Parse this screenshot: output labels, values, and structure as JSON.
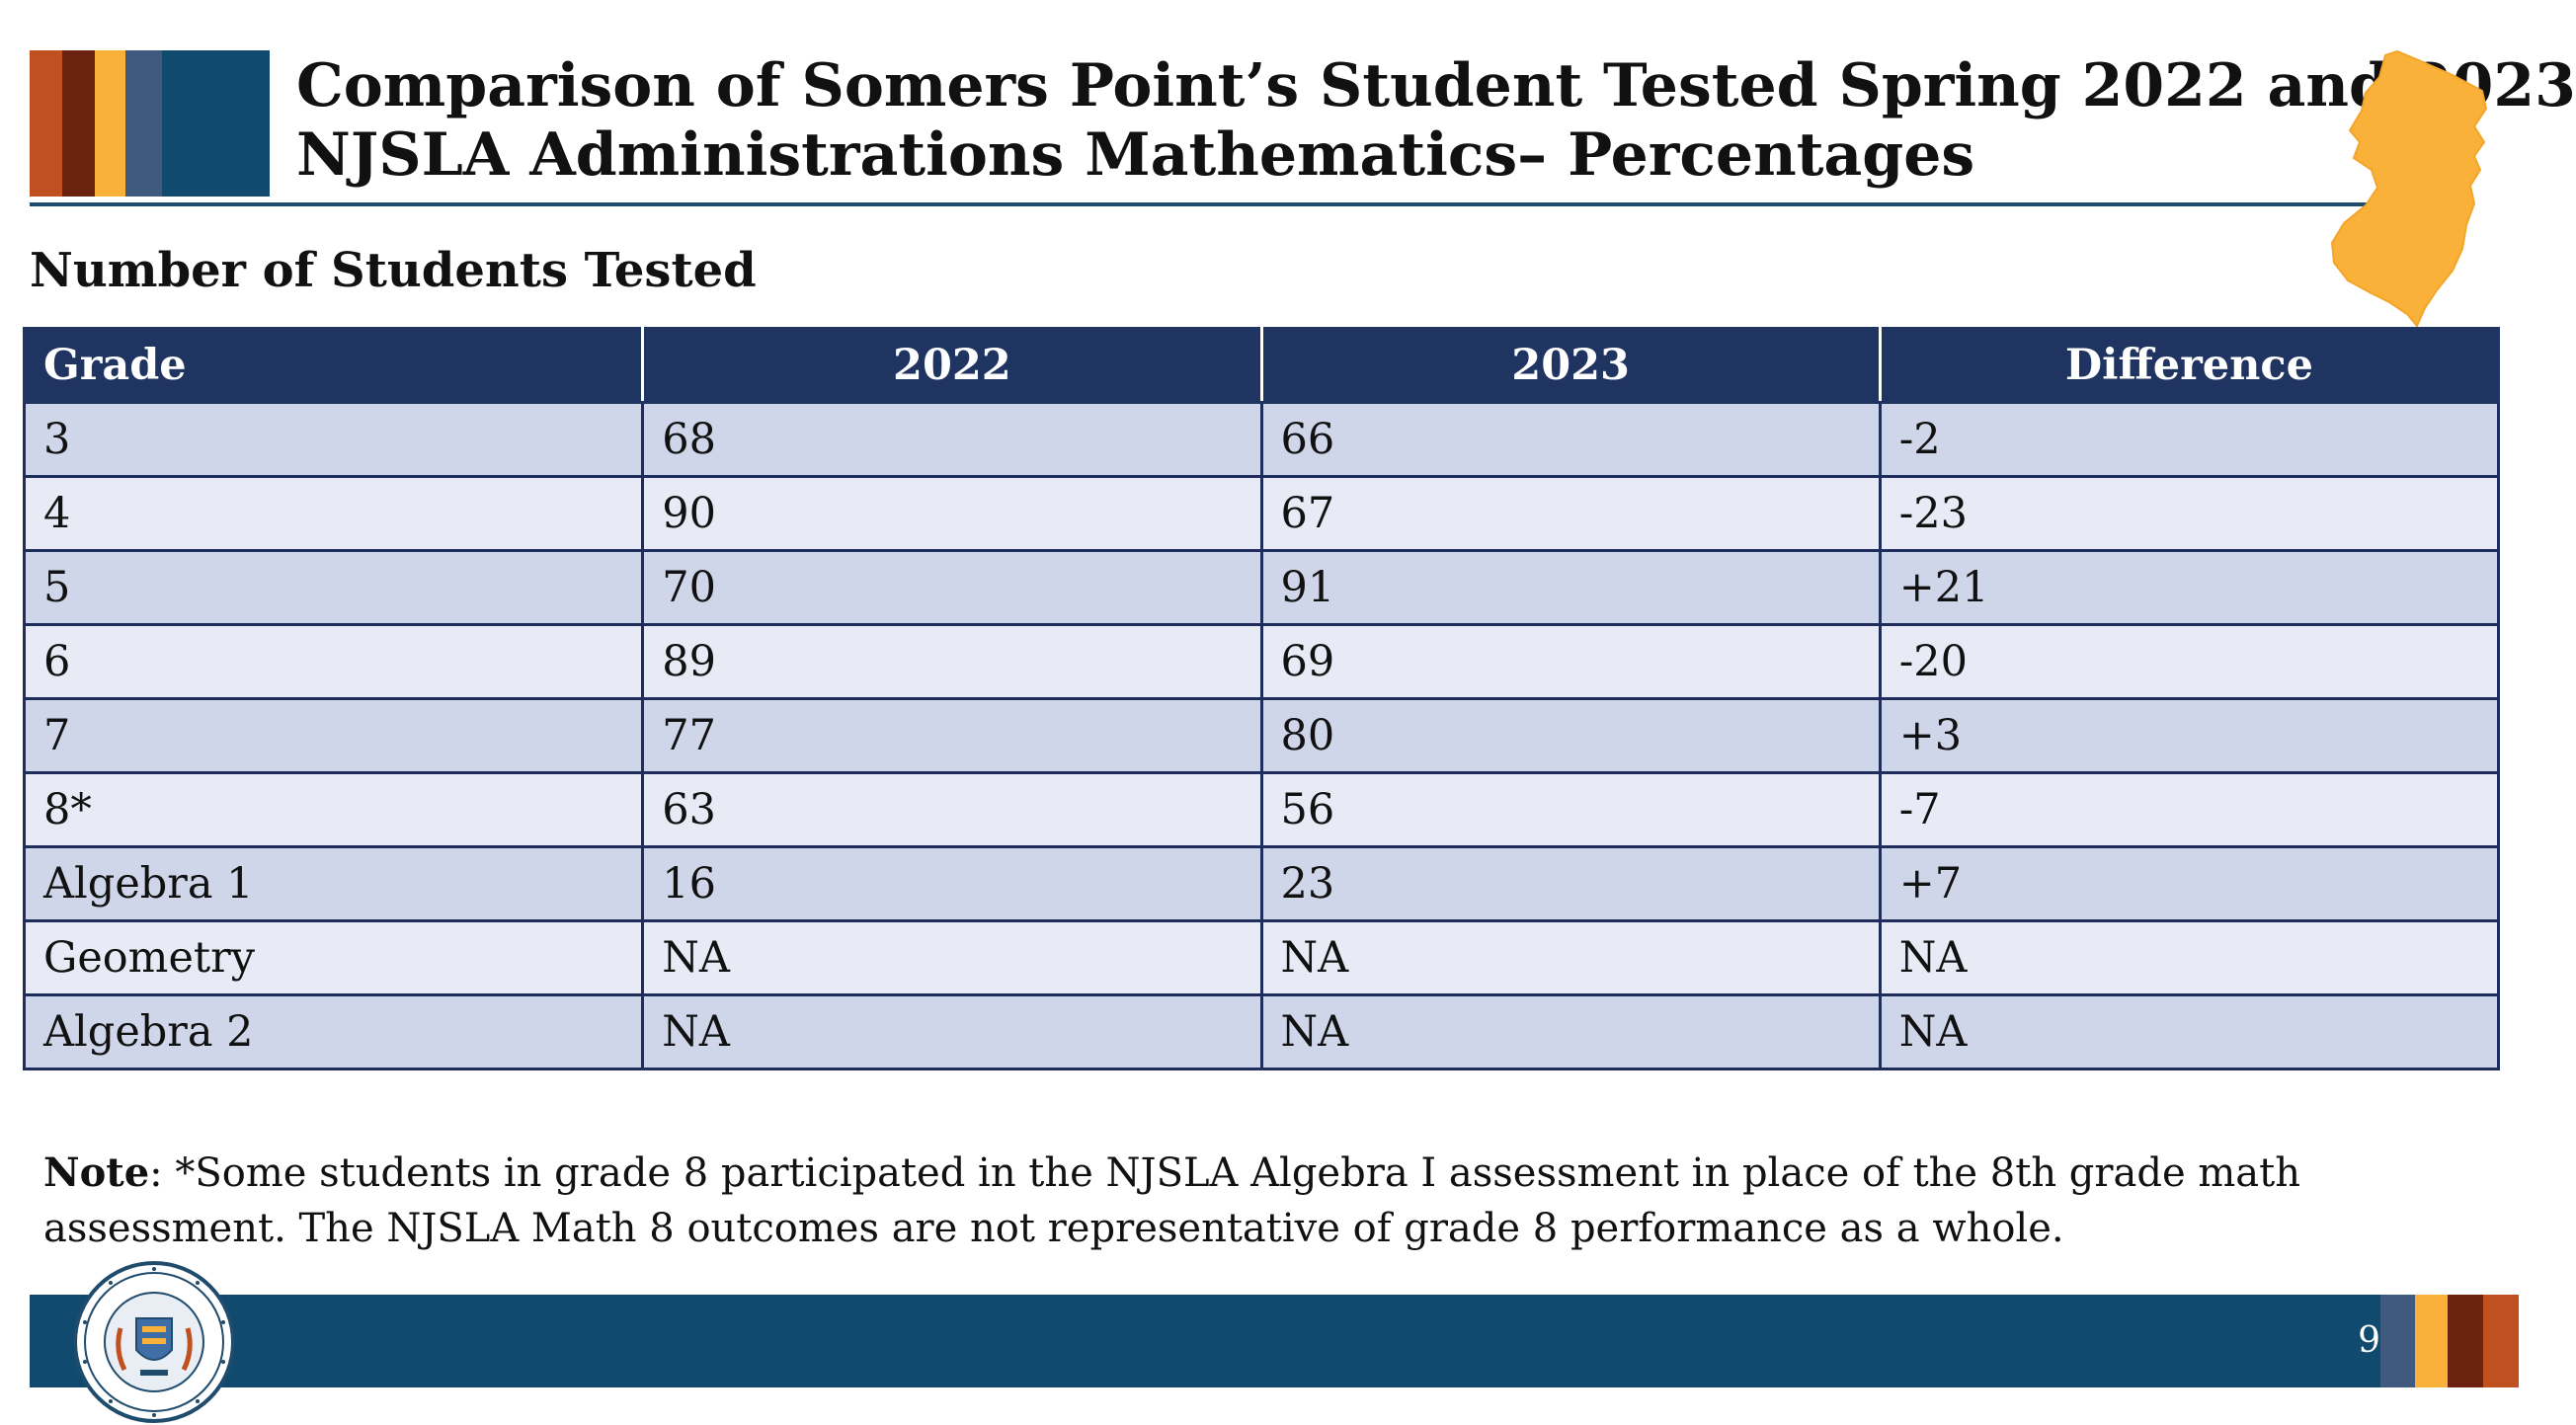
{
  "title": {
    "line1": "Comparison of Somers Point’s Student Tested Spring 2022 and 2023",
    "line2": "NJSLA Administrations Mathematics– Percentages"
  },
  "subtitle": "Number of Students Tested",
  "table": {
    "headers": [
      "Grade",
      "2022",
      "2023",
      "Difference"
    ],
    "rows": [
      [
        "3",
        "68",
        "66",
        "-2"
      ],
      [
        "4",
        "90",
        "67",
        "-23"
      ],
      [
        "5",
        "70",
        "91",
        "+21"
      ],
      [
        "6",
        "89",
        "69",
        "-20"
      ],
      [
        "7",
        "77",
        "80",
        "+3"
      ],
      [
        "8*",
        "63",
        "56",
        "-7"
      ],
      [
        "Algebra 1",
        "16",
        "23",
        "+7"
      ],
      [
        "Geometry",
        "NA",
        "NA",
        "NA"
      ],
      [
        "Algebra 2",
        "NA",
        "NA",
        "NA"
      ]
    ]
  },
  "note": {
    "label": "Note",
    "text": ": *Some students in grade 8 participated in the NJSLA Algebra I assessment in place of the 8th grade math assessment. The NJSLA Math 8 outcomes are not representative of grade 8 performance as a whole."
  },
  "footer": {
    "page_number": "9",
    "seal_icon": "nj-department-of-education-seal-icon"
  },
  "decor": {
    "map_icon": "new-jersey-map-icon",
    "colors": {
      "navy": "#104a6f",
      "header_navy": "#1f3461",
      "orange": "#c0501f",
      "maroon": "#6b2310",
      "gold": "#f9b13a",
      "slate": "#3f5a7e",
      "row_odd": "#cfd6ea",
      "row_even": "#e8ebf5",
      "map_fill": "#f9b13a"
    }
  }
}
